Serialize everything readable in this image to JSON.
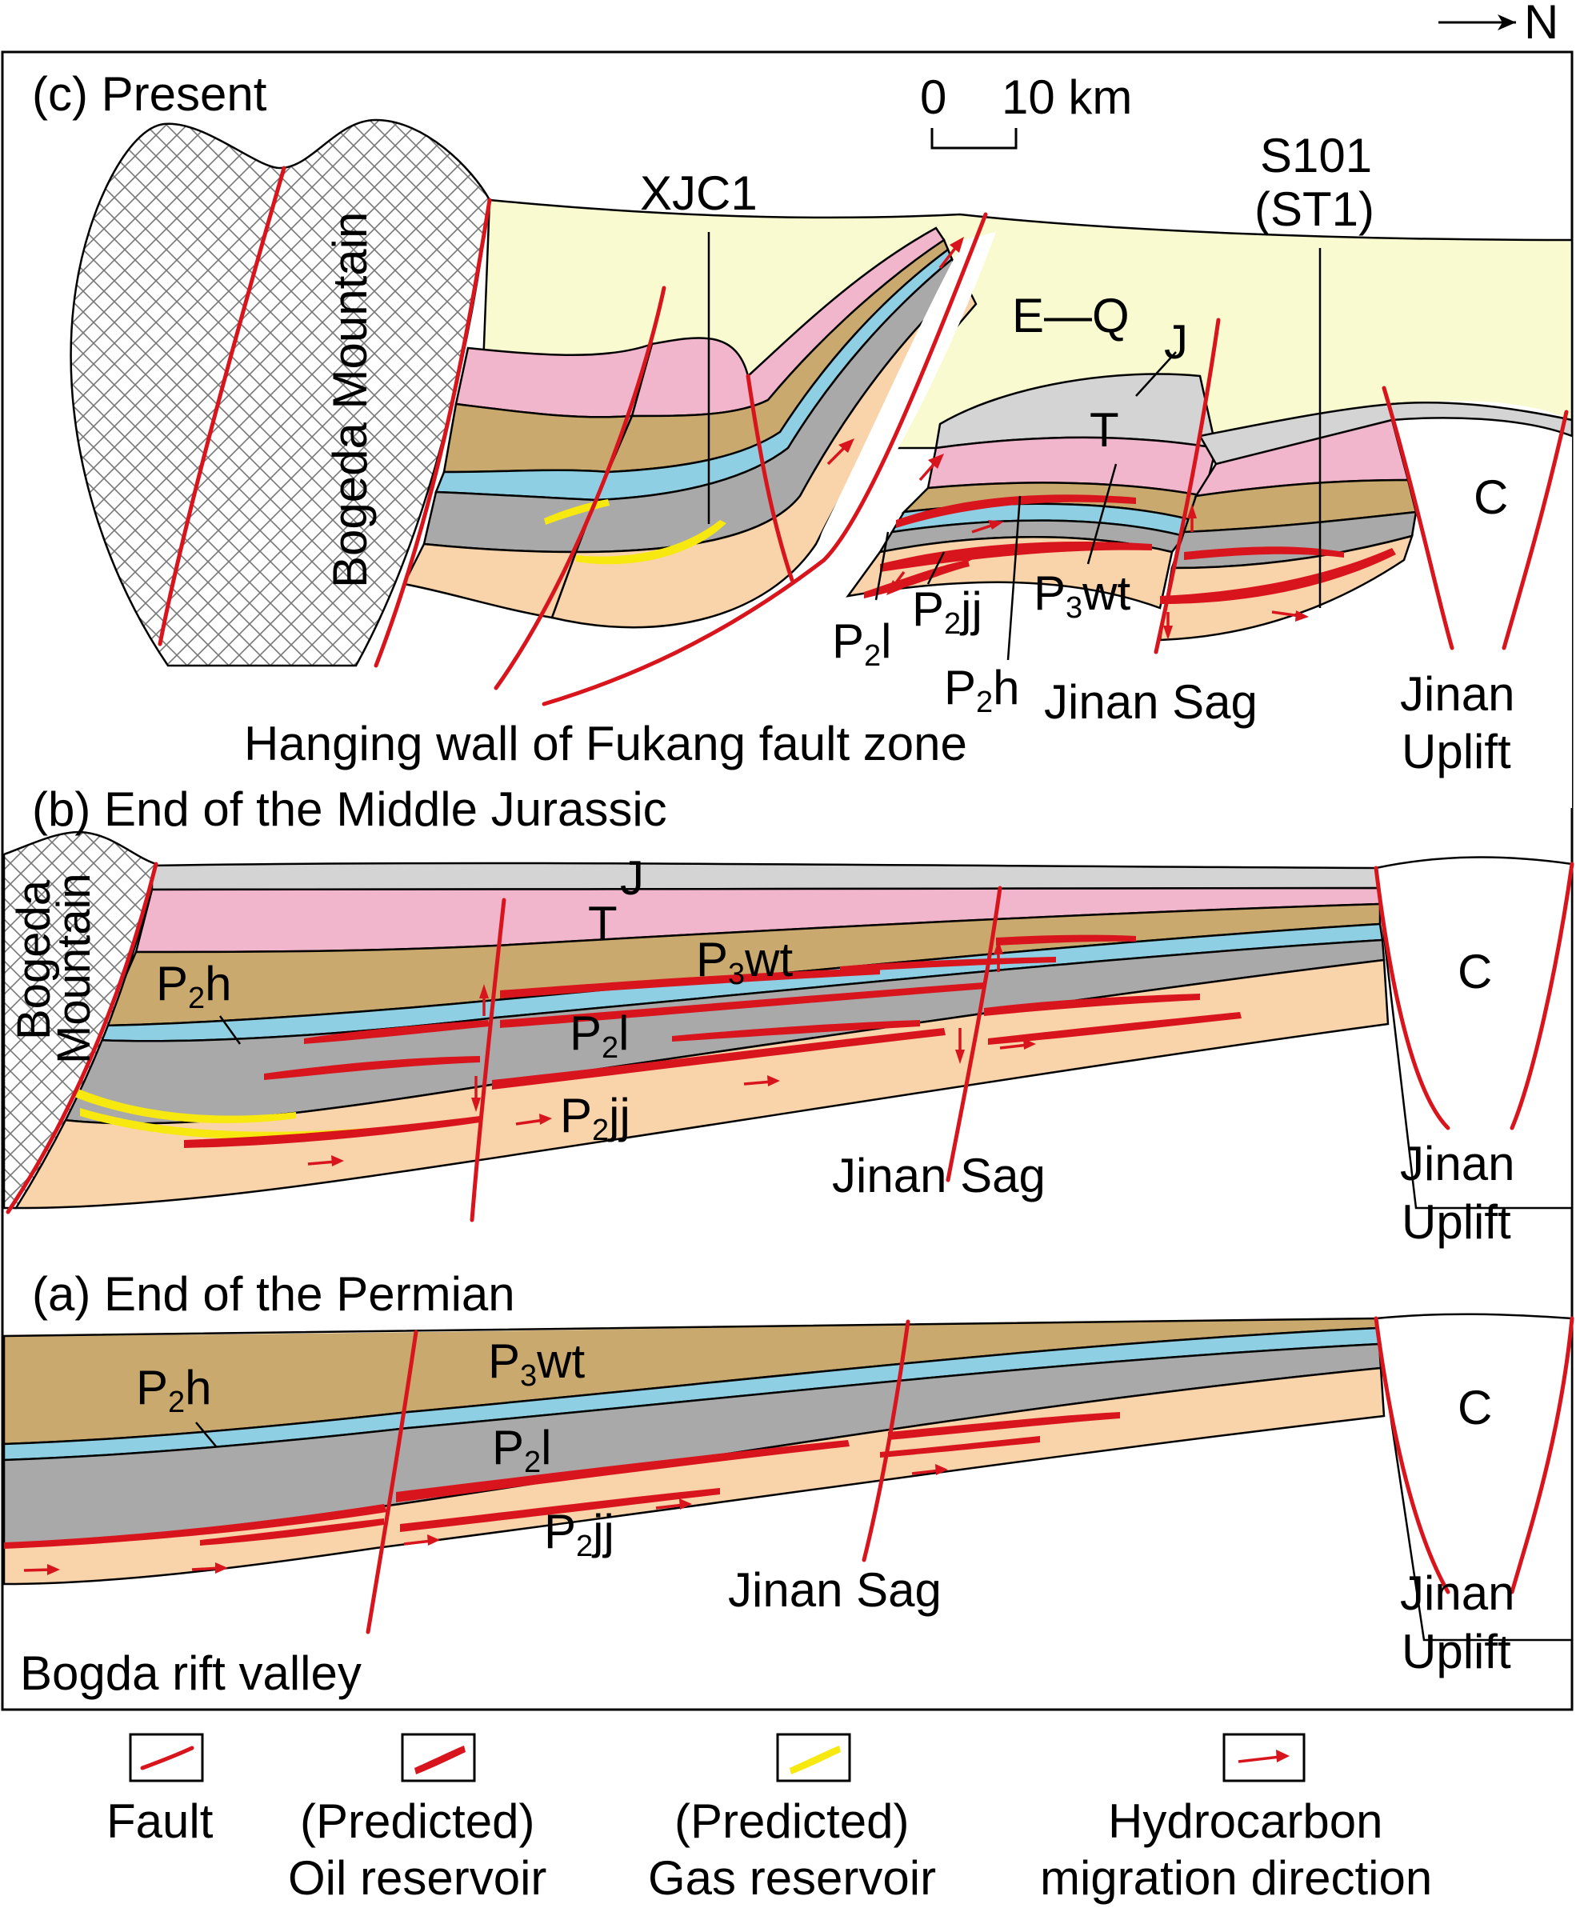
{
  "north": "N",
  "scale": {
    "zero": "0",
    "value": "10 km"
  },
  "panel_c": {
    "title": "(c) Present",
    "mountain": "Bogeda Mountain",
    "well1": "XJC1",
    "well2_top": "S101",
    "well2_bottom": "(ST1)",
    "eq": "E—Q",
    "j": "J",
    "t": "T",
    "c": "C",
    "p2l": {
      "base": "P",
      "sub": "2",
      "rest": "l"
    },
    "p2jj": {
      "base": "P",
      "sub": "2",
      "rest": "jj"
    },
    "p2h": {
      "base": "P",
      "sub": "2",
      "rest": "h"
    },
    "p3wt": {
      "base": "P",
      "sub": "3",
      "rest": "wt"
    },
    "sag": "Jinan Sag",
    "uplift_1": "Jinan",
    "uplift_2": "Uplift",
    "hanging": "Hanging wall of Fukang fault zone"
  },
  "panel_b": {
    "title": "(b) End of the Middle Jurassic",
    "mountain_1": "Bogeda",
    "mountain_2": "Mountain",
    "j": "J",
    "t": "T",
    "c": "C",
    "p2h": {
      "base": "P",
      "sub": "2",
      "rest": "h"
    },
    "p3wt": {
      "base": "P",
      "sub": "3",
      "rest": "wt"
    },
    "p2l": {
      "base": "P",
      "sub": "2",
      "rest": "l"
    },
    "p2jj": {
      "base": "P",
      "sub": "2",
      "rest": "jj"
    },
    "sag": "Jinan Sag",
    "uplift_1": "Jinan",
    "uplift_2": "Uplift"
  },
  "panel_a": {
    "title": "(a) End of the Permian",
    "c": "C",
    "p2h": {
      "base": "P",
      "sub": "2",
      "rest": "h"
    },
    "p3wt": {
      "base": "P",
      "sub": "3",
      "rest": "wt"
    },
    "p2l": {
      "base": "P",
      "sub": "2",
      "rest": "l"
    },
    "p2jj": {
      "base": "P",
      "sub": "2",
      "rest": "jj"
    },
    "sag": "Jinan Sag",
    "uplift_1": "Jinan",
    "uplift_2": "Uplift",
    "rift": "Bogda rift valley"
  },
  "legend": {
    "fault": "Fault",
    "oil_1": "(Predicted)",
    "oil_2": "Oil reservoir",
    "gas_1": "(Predicted)",
    "gas_2": "Gas reservoir",
    "mig_1": "Hydrocarbon",
    "mig_2": "migration direction"
  },
  "colors": {
    "eq": "#fafad0",
    "j": "#d4d4d4",
    "t": "#f2b6cc",
    "p3wt": "#c9a96e",
    "p2h_layer": "#8ecfe4",
    "p2l": "#a9a9a9",
    "p2jj": "#f9d3aa",
    "fault": "#d8141c",
    "gas": "#f7e80f"
  }
}
